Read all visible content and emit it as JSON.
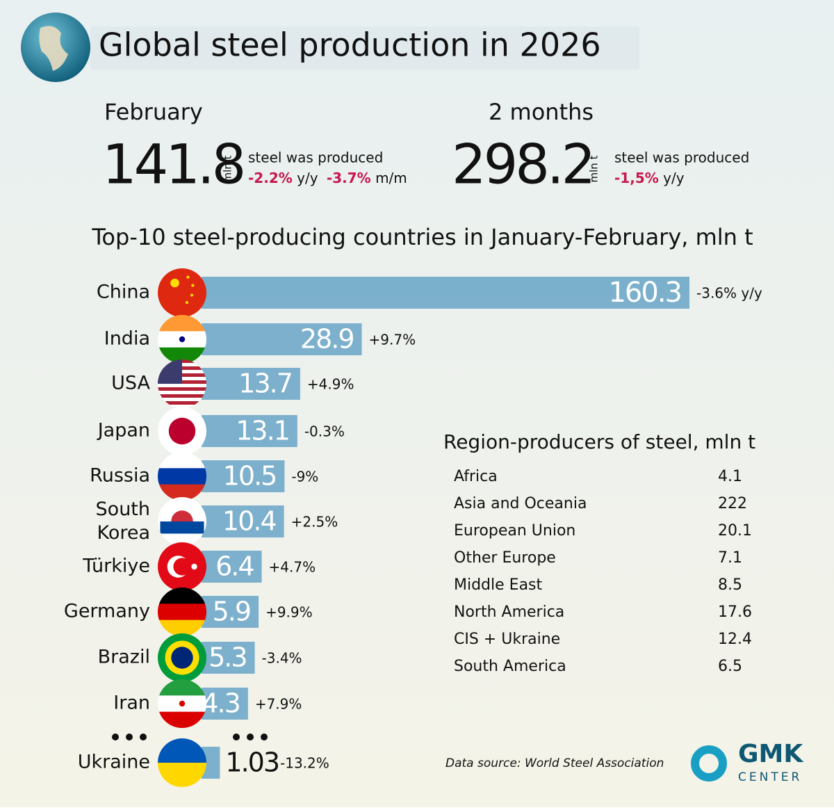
{
  "header": {
    "title": "Global steel production in 2026"
  },
  "summary": {
    "month": {
      "period": "February",
      "value": 141.8,
      "unit": "mln t",
      "text": "steel was produced",
      "changes": [
        {
          "value": "-2.2%",
          "label": "y/y"
        },
        {
          "value": "-3.7%",
          "label": "m/m"
        }
      ]
    },
    "ytd": {
      "period": "2 months",
      "value": 298.2,
      "unit": "mln t",
      "text": "steel was produced",
      "changes": [
        {
          "value": "-1,5%",
          "label": "y/y"
        }
      ]
    }
  },
  "chart_data": {
    "type": "bar",
    "orientation": "horizontal",
    "title": "Top-10 steel-producing countries in January-February, mln t",
    "categories": [
      "China",
      "India",
      "USA",
      "Japan",
      "Russia",
      "South Korea",
      "Türkiye",
      "Germany",
      "Brazil",
      "Iran",
      "Ukraine"
    ],
    "values": [
      160.3,
      28.9,
      13.7,
      13.1,
      10.5,
      10.4,
      6.4,
      5.9,
      5.3,
      4.3,
      1.03
    ],
    "changes": [
      "-3.6% y/y",
      "+9.7%",
      "+4.9%",
      "-0.3%",
      "-9%",
      "+2.5%",
      "+4.7%",
      "+9.9%",
      "-3.4%",
      "+7.9%",
      "-13.2%"
    ],
    "color": "#6fa9c9"
  },
  "regions": {
    "title": "Region-producers of steel, mln t",
    "rows": [
      [
        "Africa",
        4.1
      ],
      [
        "Asia and Oceania",
        222
      ],
      [
        "European Union",
        20.1
      ],
      [
        "Other Europe",
        7.1
      ],
      [
        "Middle East",
        8.5
      ],
      [
        "North America",
        17.6
      ],
      [
        "CIS + Ukraine",
        12.4
      ],
      [
        "South America",
        6.5
      ]
    ]
  },
  "footer": {
    "source": "Data source: World Steel Association",
    "logo": [
      "GMK",
      "CENTER"
    ]
  }
}
